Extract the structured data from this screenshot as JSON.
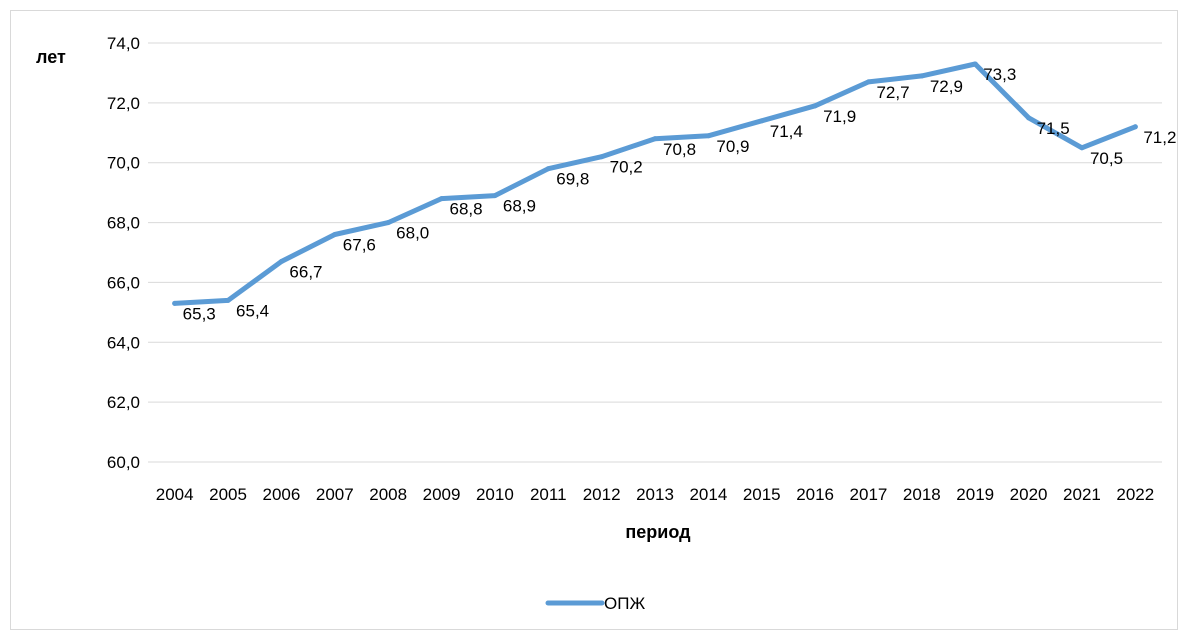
{
  "chart_data": {
    "type": "line",
    "ylabel": "лет",
    "xlabel": "период",
    "categories": [
      "2004",
      "2005",
      "2006",
      "2007",
      "2008",
      "2009",
      "2010",
      "2011",
      "2012",
      "2013",
      "2014",
      "2015",
      "2016",
      "2017",
      "2018",
      "2019",
      "2020",
      "2021",
      "2022"
    ],
    "series": [
      {
        "name": "ОПЖ",
        "color": "#5b9bd5",
        "values": [
          65.3,
          65.4,
          66.7,
          67.6,
          68.0,
          68.8,
          68.9,
          69.8,
          70.2,
          70.8,
          70.9,
          71.4,
          71.9,
          72.7,
          72.9,
          73.3,
          71.5,
          70.5,
          71.2
        ]
      }
    ],
    "data_labels": [
      "65,3",
      "65,4",
      "66,7",
      "67,6",
      "68,0",
      "68,8",
      "68,9",
      "69,8",
      "70,2",
      "70,8",
      "70,9",
      "71,4",
      "71,9",
      "72,7",
      "72,9",
      "73,3",
      "71,5",
      "70,5",
      "71,2"
    ],
    "ylim": [
      60,
      74
    ],
    "yticks": [
      60,
      62,
      64,
      66,
      68,
      70,
      72,
      74
    ],
    "ytick_labels": [
      "60,0",
      "62,0",
      "64,0",
      "66,0",
      "68,0",
      "70,0",
      "72,0",
      "74,0"
    ],
    "grid": true,
    "legend_position": "bottom"
  }
}
